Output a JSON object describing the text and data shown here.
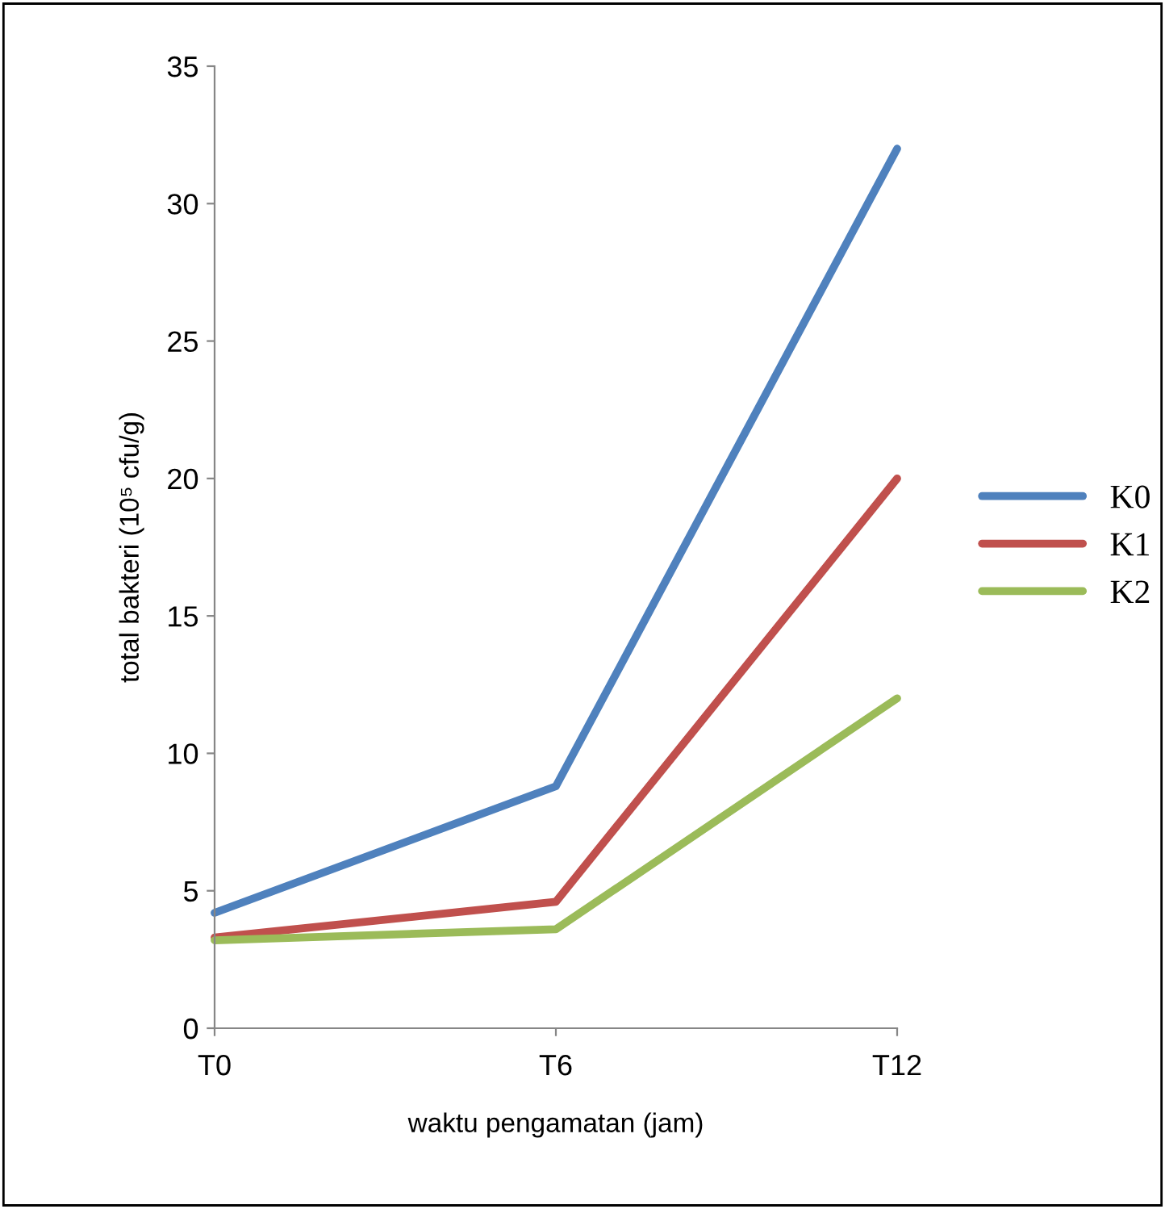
{
  "chart_data": {
    "type": "line",
    "xlabel": "waktu pengamatan (jam)",
    "ylabel": "total bakteri (10⁵ cfu/g)",
    "categories": [
      "T0",
      "T6",
      "T12"
    ],
    "series": [
      {
        "name": "K0",
        "color": "#4f81bd",
        "values": [
          4.2,
          8.8,
          32.0
        ]
      },
      {
        "name": "K1",
        "color": "#c0504d",
        "values": [
          3.3,
          4.6,
          20.0
        ]
      },
      {
        "name": "K2",
        "color": "#9bbb59",
        "values": [
          3.2,
          3.6,
          12.0
        ]
      }
    ],
    "ylim": [
      0,
      35
    ],
    "yticks": [
      0,
      5,
      10,
      15,
      20,
      25,
      30,
      35
    ],
    "grid": false,
    "legend": "right",
    "marker": "none",
    "line_style": "solid"
  }
}
